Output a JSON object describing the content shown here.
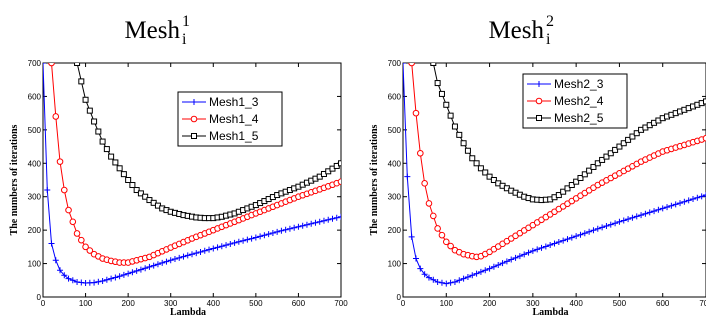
{
  "chart_data": [
    {
      "type": "line",
      "title": "Mesh",
      "title_sub": "i",
      "title_sup": "1",
      "xlabel": "Lambda",
      "ylabel": "The numbers of iterations",
      "xlim": [
        0,
        700
      ],
      "ylim": [
        0,
        700
      ],
      "xticks": [
        "0",
        "100",
        "200",
        "300",
        "400",
        "500",
        "600",
        "700"
      ],
      "yticks": [
        "0",
        "100",
        "200",
        "300",
        "400",
        "500",
        "600",
        "700"
      ],
      "grid": false,
      "legend": "top-right",
      "series": [
        {
          "name": "Mesh1_3",
          "color": "#0000ff",
          "marker": "plus",
          "x": [
            0,
            10,
            20,
            30,
            40,
            50,
            60,
            80,
            100,
            120,
            140,
            160,
            180,
            200,
            250,
            300,
            350,
            400,
            450,
            500,
            550,
            600,
            650,
            700
          ],
          "y": [
            700,
            320,
            160,
            110,
            80,
            65,
            55,
            45,
            42,
            43,
            48,
            55,
            62,
            70,
            90,
            110,
            128,
            145,
            162,
            178,
            195,
            210,
            225,
            240
          ]
        },
        {
          "name": "Mesh1_4",
          "color": "#ff0000",
          "marker": "circle",
          "x": [
            20,
            30,
            40,
            50,
            60,
            80,
            100,
            120,
            140,
            160,
            180,
            200,
            250,
            300,
            350,
            400,
            450,
            500,
            550,
            600,
            650,
            700
          ],
          "y": [
            700,
            540,
            405,
            320,
            260,
            190,
            150,
            128,
            115,
            108,
            103,
            103,
            120,
            148,
            175,
            200,
            225,
            250,
            275,
            300,
            322,
            345
          ]
        },
        {
          "name": "Mesh1_5",
          "color": "#000000",
          "marker": "square",
          "x": [
            80,
            100,
            120,
            140,
            160,
            180,
            200,
            220,
            250,
            280,
            300,
            330,
            360,
            380,
            400,
            420,
            450,
            500,
            550,
            600,
            650,
            700
          ],
          "y": [
            700,
            590,
            525,
            465,
            420,
            385,
            350,
            320,
            290,
            265,
            255,
            245,
            238,
            236,
            236,
            240,
            250,
            275,
            305,
            330,
            360,
            400
          ]
        }
      ]
    },
    {
      "type": "line",
      "title": "Mesh",
      "title_sub": "i",
      "title_sup": "2",
      "xlabel": "Lambda",
      "ylabel": "The numbers of iterations",
      "xlim": [
        0,
        700
      ],
      "ylim": [
        0,
        700
      ],
      "xticks": [
        "0",
        "100",
        "200",
        "300",
        "400",
        "500",
        "600",
        "700"
      ],
      "yticks": [
        "0",
        "100",
        "200",
        "300",
        "400",
        "500",
        "600",
        "700"
      ],
      "grid": false,
      "legend": "top-right",
      "series": [
        {
          "name": "Mesh2_3",
          "color": "#0000ff",
          "marker": "plus",
          "x": [
            0,
            10,
            20,
            30,
            40,
            50,
            60,
            80,
            100,
            120,
            140,
            160,
            180,
            200,
            250,
            300,
            350,
            400,
            450,
            500,
            550,
            600,
            650,
            700
          ],
          "y": [
            700,
            360,
            180,
            115,
            85,
            68,
            58,
            45,
            40,
            45,
            55,
            65,
            75,
            85,
            112,
            138,
            160,
            182,
            204,
            225,
            245,
            265,
            285,
            305
          ]
        },
        {
          "name": "Mesh2_4",
          "color": "#ff0000",
          "marker": "circle",
          "x": [
            20,
            30,
            40,
            50,
            60,
            80,
            100,
            120,
            140,
            160,
            170,
            180,
            200,
            250,
            300,
            350,
            400,
            450,
            500,
            550,
            600,
            650,
            700
          ],
          "y": [
            700,
            550,
            430,
            340,
            280,
            205,
            165,
            140,
            128,
            122,
            120,
            122,
            135,
            175,
            215,
            255,
            295,
            335,
            370,
            405,
            435,
            455,
            475
          ]
        },
        {
          "name": "Mesh2_5",
          "color": "#000000",
          "marker": "square",
          "x": [
            70,
            80,
            100,
            120,
            140,
            160,
            180,
            200,
            220,
            250,
            280,
            300,
            320,
            340,
            360,
            400,
            450,
            500,
            550,
            600,
            650,
            700
          ],
          "y": [
            700,
            640,
            575,
            510,
            460,
            415,
            385,
            360,
            340,
            318,
            300,
            292,
            290,
            292,
            305,
            345,
            400,
            450,
            500,
            535,
            560,
            585
          ]
        }
      ]
    }
  ]
}
